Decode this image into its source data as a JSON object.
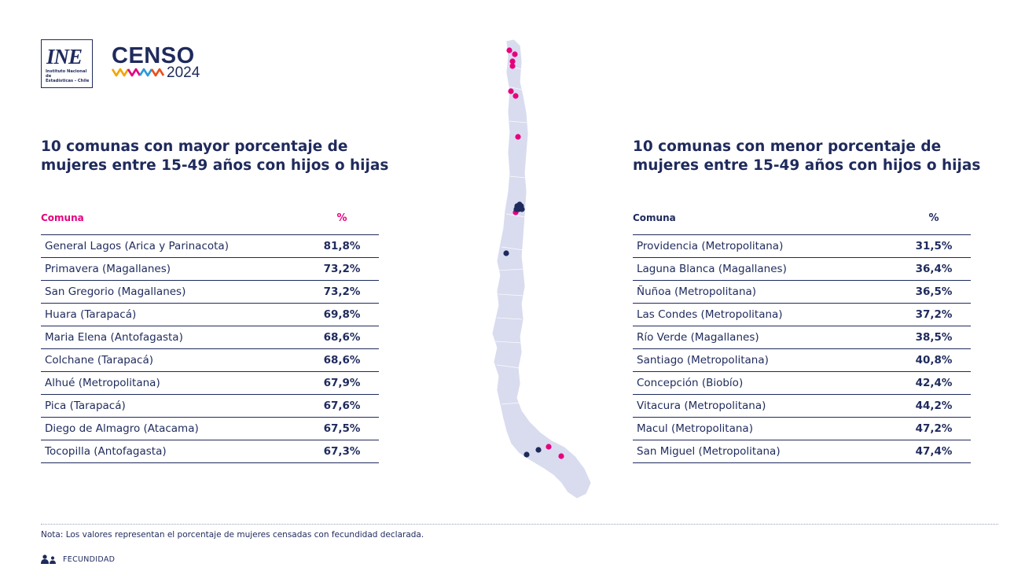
{
  "logos": {
    "ine_mark": "INE",
    "ine_subtitle": "Instituto Nacional de\nEstadísticas - Chile",
    "censo_word": "CENSO",
    "censo_year": "2024"
  },
  "left": {
    "title": "10 comunas con mayor porcentaje de mujeres entre 15-49 años con hijos o hijas",
    "header": {
      "name": "Comuna",
      "value": "%"
    },
    "rows": [
      {
        "name": "General Lagos (Arica y Parinacota)",
        "value": "81,8%"
      },
      {
        "name": "Primavera (Magallanes)",
        "value": "73,2%"
      },
      {
        "name": "San Gregorio (Magallanes)",
        "value": "73,2%"
      },
      {
        "name": "Huara (Tarapacá)",
        "value": "69,8%"
      },
      {
        "name": "Maria Elena (Antofagasta)",
        "value": "68,6%"
      },
      {
        "name": "Colchane (Tarapacá)",
        "value": "68,6%"
      },
      {
        "name": "Alhué (Metropolitana)",
        "value": "67,9%"
      },
      {
        "name": "Pica (Tarapacá)",
        "value": "67,6%"
      },
      {
        "name": "Diego de Almagro (Atacama)",
        "value": "67,5%"
      },
      {
        "name": "Tocopilla (Antofagasta)",
        "value": "67,3%"
      }
    ]
  },
  "right": {
    "title": "10 comunas con menor porcentaje de mujeres entre 15-49 años con hijos o hijas",
    "header": {
      "name": "Comuna",
      "value": "%"
    },
    "rows": [
      {
        "name": "Providencia (Metropolitana)",
        "value": "31,5%"
      },
      {
        "name": "Laguna Blanca (Magallanes)",
        "value": "36,4%"
      },
      {
        "name": "Ñuñoa (Metropolitana)",
        "value": "36,5%"
      },
      {
        "name": "Las Condes (Metropolitana)",
        "value": "37,2%"
      },
      {
        "name": "Río Verde (Magallanes)",
        "value": "38,5%"
      },
      {
        "name": "Santiago (Metropolitana)",
        "value": "40,8%"
      },
      {
        "name": "Concepción (Biobío)",
        "value": "42,4%"
      },
      {
        "name": "Vitacura (Metropolitana)",
        "value": "44,2%"
      },
      {
        "name": "Macul (Metropolitana)",
        "value": "47,2%"
      },
      {
        "name": "San Miguel (Metropolitana)",
        "value": "47,4%"
      }
    ]
  },
  "note": "Nota:  Los valores representan el porcentaje de mujeres censadas con fecundidad declarada.",
  "footer": {
    "icon": "people-icon",
    "label": "FECUNDIDAD"
  },
  "colors": {
    "navy": "#1f2a5c",
    "magenta": "#e6007e",
    "map_fill": "#d9dcef"
  }
}
